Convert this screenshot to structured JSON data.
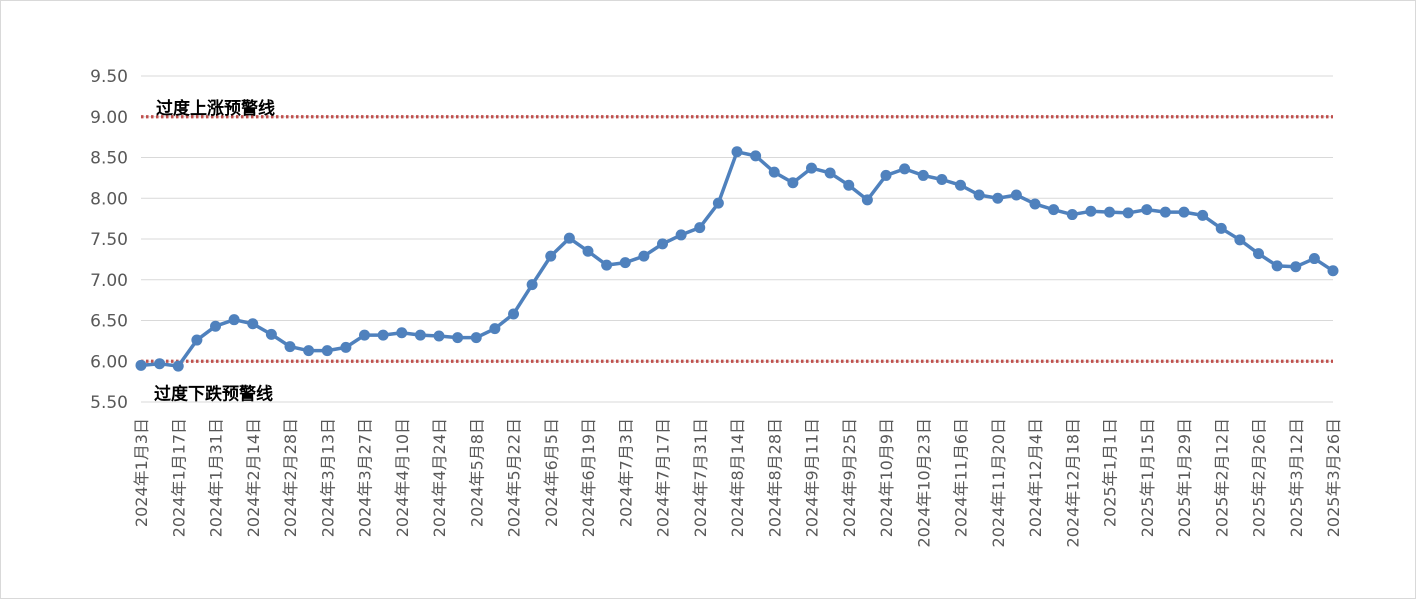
{
  "chart_data": {
    "type": "line",
    "ylim": [
      5.5,
      9.5
    ],
    "yticks": [
      "5.50",
      "6.00",
      "6.50",
      "7.00",
      "7.50",
      "8.00",
      "8.50",
      "9.00",
      "9.50"
    ],
    "grid": true,
    "x_tick_labels": [
      "2024年1月3日",
      "2024年1月17日",
      "2024年1月31日",
      "2024年2月14日",
      "2024年2月28日",
      "2024年3月13日",
      "2024年3月27日",
      "2024年4月10日",
      "2024年4月24日",
      "2024年5月8日",
      "2024年5月22日",
      "2024年6月5日",
      "2024年6月19日",
      "2024年7月3日",
      "2024年7月17日",
      "2024年7月31日",
      "2024年8月14日",
      "2024年8月28日",
      "2024年9月11日",
      "2024年9月25日",
      "2024年10月9日",
      "2024年10月23日",
      "2024年11月6日",
      "2024年11月20日",
      "2024年12月4日",
      "2024年12月18日",
      "2025年1月1日",
      "2025年1月15日",
      "2025年1月29日",
      "2025年2月12日",
      "2025年2月26日",
      "2025年3月12日",
      "2025年3月26日"
    ],
    "series": [
      {
        "color": "#4f81bd",
        "values": [
          5.95,
          5.97,
          5.94,
          6.26,
          6.43,
          6.51,
          6.46,
          6.33,
          6.18,
          6.13,
          6.13,
          6.17,
          6.32,
          6.32,
          6.35,
          6.32,
          6.31,
          6.29,
          6.29,
          6.4,
          6.58,
          6.94,
          7.29,
          7.51,
          7.35,
          7.18,
          7.21,
          7.29,
          7.44,
          7.55,
          7.64,
          7.94,
          8.57,
          8.52,
          8.32,
          8.19,
          8.37,
          8.31,
          8.16,
          7.98,
          8.28,
          8.36,
          8.28,
          8.23,
          8.16,
          8.04,
          8.0,
          8.04,
          7.93,
          7.86,
          7.8,
          7.84,
          7.83,
          7.82,
          7.86,
          7.83,
          7.83,
          7.79,
          7.63,
          7.49,
          7.32,
          7.17,
          7.16,
          7.26,
          7.11
        ]
      }
    ],
    "reference_lines": [
      {
        "value": 9.0,
        "label": "过度上涨预警线",
        "color": "#c0504d",
        "style": "dotted"
      },
      {
        "value": 6.0,
        "label": "过度下跌预警线",
        "color": "#c0504d",
        "style": "dotted"
      }
    ]
  }
}
